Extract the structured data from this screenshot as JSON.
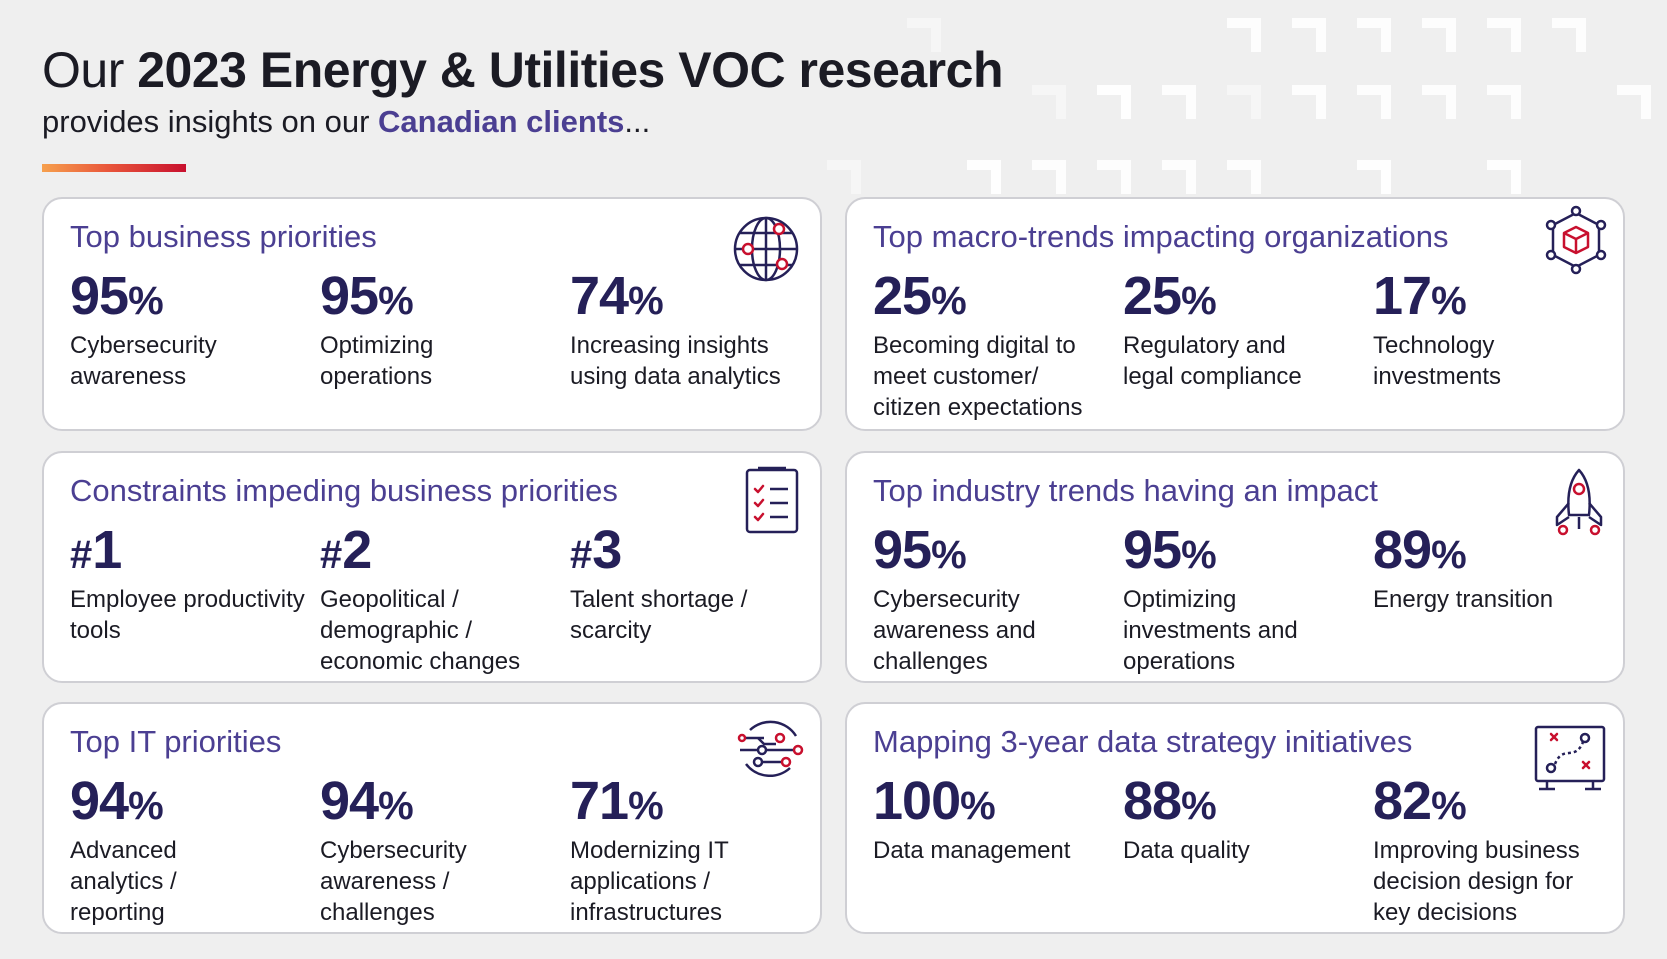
{
  "header": {
    "title_prefix": "Our ",
    "title_bold": "2023 Energy & Utilities VOC research",
    "subtitle_prefix": "provides insights on our ",
    "subtitle_highlight": "Canadian clients",
    "subtitle_suffix": "..."
  },
  "colors": {
    "accent_purple": "#4b3f92",
    "navy": "#252058",
    "accent_red": "#c8102e",
    "accent_orange": "#f6a04d"
  },
  "cards": [
    {
      "title": "Top business priorities",
      "icon": "globe-icon",
      "stats": [
        {
          "value": "95",
          "unit": "%",
          "label": "Cybersecurity awareness"
        },
        {
          "value": "95",
          "unit": "%",
          "label": "Optimizing operations"
        },
        {
          "value": "74",
          "unit": "%",
          "label": "Increasing insights using data analytics"
        }
      ]
    },
    {
      "title": "Top macro-trends impacting organizations",
      "icon": "cube-network-icon",
      "stats": [
        {
          "value": "25",
          "unit": "%",
          "label": "Becoming digital to meet customer/ citizen expectations"
        },
        {
          "value": "25",
          "unit": "%",
          "label": "Regulatory and legal compliance"
        },
        {
          "value": "17",
          "unit": "%",
          "label": "Technology investments"
        }
      ]
    },
    {
      "title": "Constraints impeding business priorities",
      "icon": "checklist-icon",
      "stats": [
        {
          "prefix": "#",
          "value": "1",
          "label": "Employee productivity tools"
        },
        {
          "prefix": "#",
          "value": "2",
          "label": "Geopolitical / demographic / economic changes"
        },
        {
          "prefix": "#",
          "value": "3",
          "label": "Talent shortage / scarcity"
        }
      ]
    },
    {
      "title": "Top industry trends having an impact",
      "icon": "rocket-icon",
      "stats": [
        {
          "value": "95",
          "unit": "%",
          "label": "Cybersecurity awareness and challenges"
        },
        {
          "value": "95",
          "unit": "%",
          "label": "Optimizing investments and operations"
        },
        {
          "value": "89",
          "unit": "%",
          "label": "Energy transition"
        }
      ]
    },
    {
      "title": "Top IT priorities",
      "icon": "circuit-icon",
      "stats": [
        {
          "value": "94",
          "unit": "%",
          "label": "Advanced analytics / reporting"
        },
        {
          "value": "94",
          "unit": "%",
          "label": "Cybersecurity awareness / challenges"
        },
        {
          "value": "71",
          "unit": "%",
          "label": "Modernizing IT applications / infrastructures"
        }
      ]
    },
    {
      "title": "Mapping 3-year data strategy initiatives",
      "icon": "strategy-board-icon",
      "stats": [
        {
          "value": "100",
          "unit": "%",
          "label": "Data management"
        },
        {
          "value": "88",
          "unit": "%",
          "label": "Data quality"
        },
        {
          "value": "82",
          "unit": "%",
          "label": "Improving business decision design for key decisions"
        }
      ]
    }
  ]
}
